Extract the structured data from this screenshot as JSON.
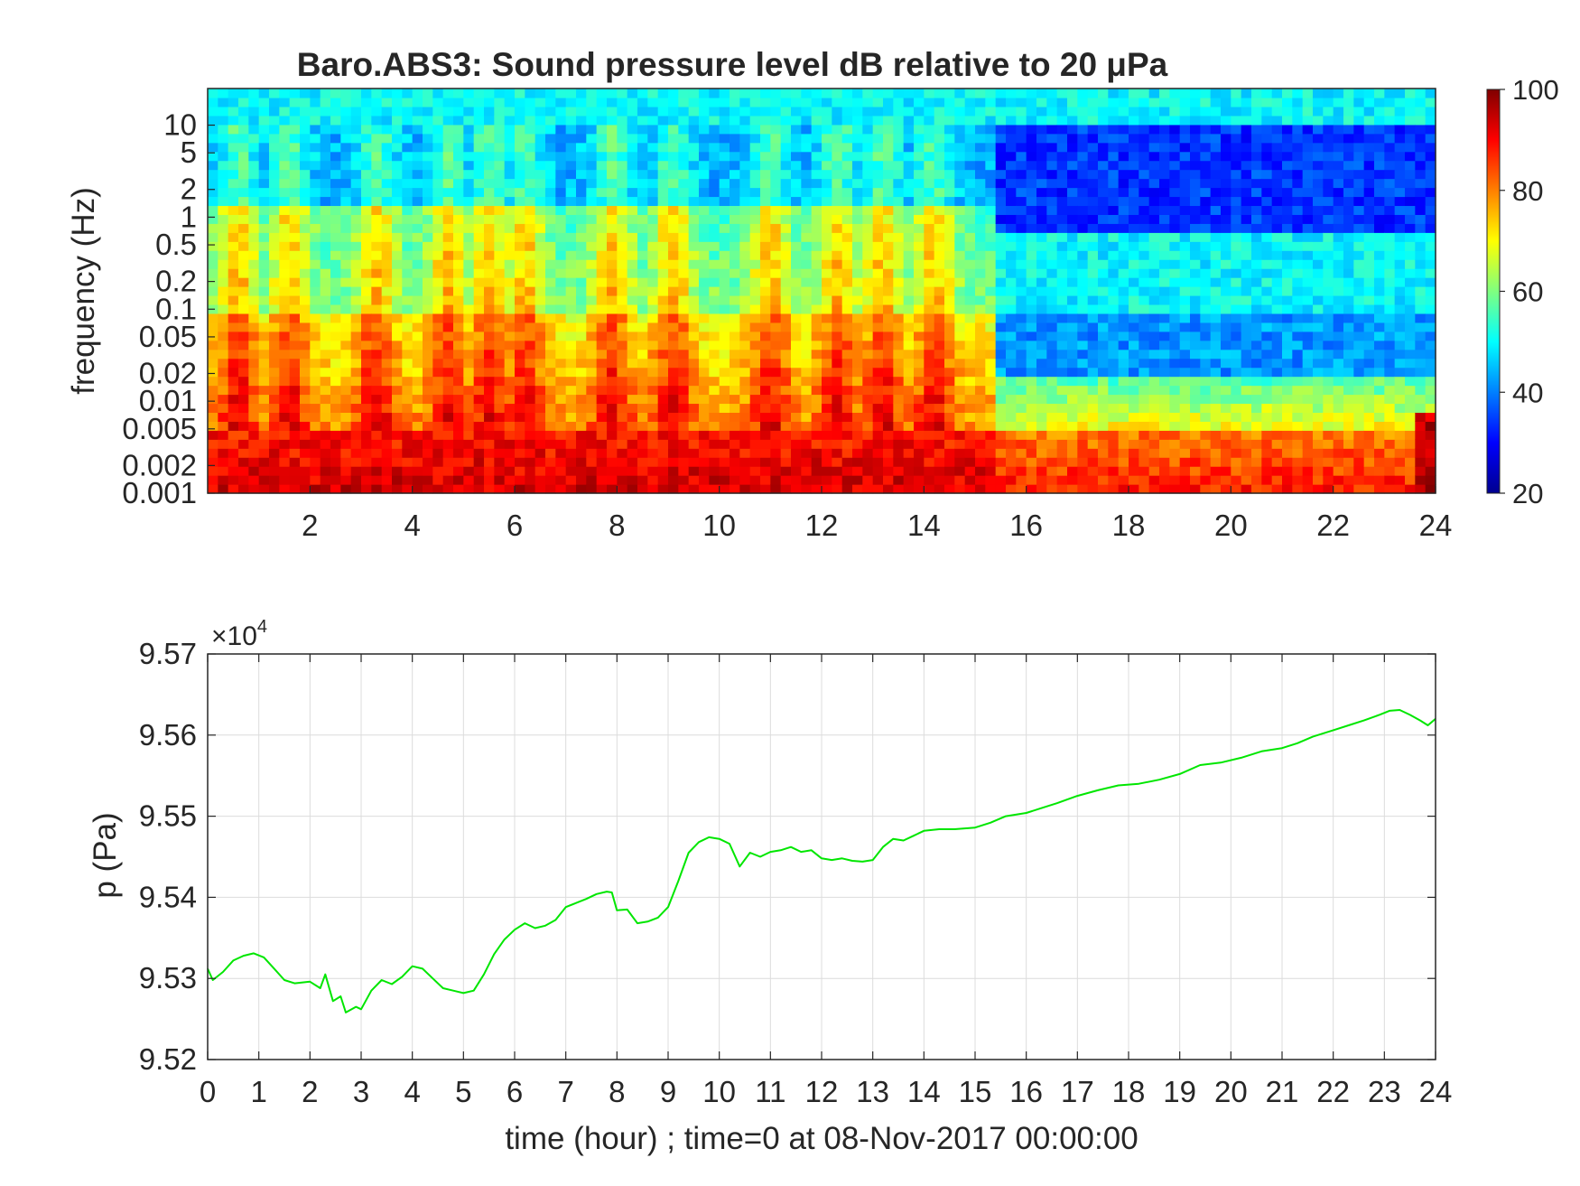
{
  "chart_data": [
    {
      "type": "heatmap",
      "title": "Baro.ABS3: Sound pressure level dB relative to 20 μPa",
      "xlabel": "",
      "ylabel": "frequency (Hz)",
      "xlim": [
        0,
        24
      ],
      "x_ticks": [
        2,
        4,
        6,
        8,
        10,
        12,
        14,
        16,
        18,
        20,
        22,
        24
      ],
      "y_scale": "log",
      "ylim": [
        0.001,
        25
      ],
      "y_ticks": [
        "0.001",
        "0.002",
        "0.005",
        "0.01",
        "0.02",
        "0.05",
        "0.1",
        "0.2",
        "0.5",
        "1",
        "2",
        "5",
        "10"
      ],
      "colormap": "jet",
      "colorbar": {
        "min": 20,
        "max": 100,
        "ticks": [
          20,
          40,
          60,
          80,
          100
        ],
        "placement": "right"
      },
      "summary_levels_db": {
        "time_hours_0_to_15": {
          "0.001-0.005 Hz": 90,
          "0.005-0.1 Hz": 75,
          "0.1-1 Hz": 65,
          "1-5 Hz": 45,
          "above 10 Hz": 52
        },
        "time_hours_15_to_24": {
          "0.001-0.005 Hz": 85,
          "0.005-0.02 Hz": 65,
          "0.02-0.1 Hz": 45,
          "0.1-0.5 Hz": 52,
          "1-5 Hz": 35,
          "above 10 Hz": 52
        }
      }
    },
    {
      "type": "line",
      "xlabel": "time (hour) ; time=0 at 08-Nov-2017 00:00:00",
      "ylabel": "p (Pa)",
      "y_multiplier_base": "×10",
      "y_multiplier_exp": "4",
      "xlim": [
        0,
        24
      ],
      "ylim": [
        9.52,
        9.57
      ],
      "x_ticks": [
        0,
        1,
        2,
        3,
        4,
        5,
        6,
        7,
        8,
        9,
        10,
        11,
        12,
        13,
        14,
        15,
        16,
        17,
        18,
        19,
        20,
        21,
        22,
        23,
        24
      ],
      "y_ticks": [
        "9.52",
        "9.53",
        "9.54",
        "9.55",
        "9.56",
        "9.57"
      ],
      "grid": true,
      "series": [
        {
          "color": "#00e600",
          "x": [
            0,
            0.1,
            0.3,
            0.5,
            0.7,
            0.9,
            1.1,
            1.3,
            1.5,
            1.7,
            2.0,
            2.2,
            2.3,
            2.45,
            2.6,
            2.7,
            2.9,
            3.0,
            3.2,
            3.4,
            3.6,
            3.8,
            4.0,
            4.2,
            4.4,
            4.6,
            4.8,
            5.0,
            5.2,
            5.4,
            5.6,
            5.8,
            6.0,
            6.2,
            6.4,
            6.6,
            6.8,
            7.0,
            7.2,
            7.4,
            7.6,
            7.8,
            7.9,
            8.0,
            8.2,
            8.4,
            8.6,
            8.8,
            9.0,
            9.2,
            9.4,
            9.6,
            9.8,
            10.0,
            10.2,
            10.4,
            10.6,
            10.8,
            11.0,
            11.2,
            11.4,
            11.6,
            11.8,
            12.0,
            12.2,
            12.4,
            12.6,
            12.8,
            13.0,
            13.2,
            13.4,
            13.6,
            13.8,
            14.0,
            14.3,
            14.6,
            15.0,
            15.3,
            15.6,
            16.0,
            16.3,
            16.6,
            17.0,
            17.4,
            17.8,
            18.2,
            18.6,
            19.0,
            19.4,
            19.8,
            20.2,
            20.6,
            21.0,
            21.3,
            21.6,
            22.0,
            22.3,
            22.6,
            22.9,
            23.1,
            23.3,
            23.5,
            23.7,
            23.85,
            24.0
          ],
          "y": [
            9.5312,
            9.5298,
            9.5308,
            9.5322,
            9.5328,
            9.5331,
            9.5326,
            9.5312,
            9.5298,
            9.5294,
            9.5296,
            9.5288,
            9.5305,
            9.5272,
            9.5278,
            9.5258,
            9.5265,
            9.5262,
            9.5285,
            9.5298,
            9.5293,
            9.5302,
            9.5315,
            9.5312,
            9.53,
            9.5288,
            9.5285,
            9.5282,
            9.5285,
            9.5305,
            9.533,
            9.5348,
            9.536,
            9.5368,
            9.5362,
            9.5365,
            9.5372,
            9.5388,
            9.5393,
            9.5398,
            9.5404,
            9.5407,
            9.5406,
            9.5384,
            9.5385,
            9.5368,
            9.537,
            9.5375,
            9.5388,
            9.542,
            9.5455,
            9.5468,
            9.5474,
            9.5472,
            9.5466,
            9.5438,
            9.5455,
            9.545,
            9.5456,
            9.5458,
            9.5462,
            9.5456,
            9.5458,
            9.5448,
            9.5446,
            9.5448,
            9.5445,
            9.5444,
            9.5446,
            9.5462,
            9.5472,
            9.547,
            9.5476,
            9.5482,
            9.5484,
            9.5484,
            9.5486,
            9.5492,
            9.55,
            9.5504,
            9.551,
            9.5516,
            9.5525,
            9.5532,
            9.5538,
            9.554,
            9.5545,
            9.5552,
            9.5563,
            9.5566,
            9.5572,
            9.558,
            9.5584,
            9.559,
            9.5598,
            9.5606,
            9.5612,
            9.5618,
            9.5625,
            9.563,
            9.5631,
            9.5625,
            9.5618,
            9.5612,
            9.562
          ]
        }
      ]
    }
  ]
}
